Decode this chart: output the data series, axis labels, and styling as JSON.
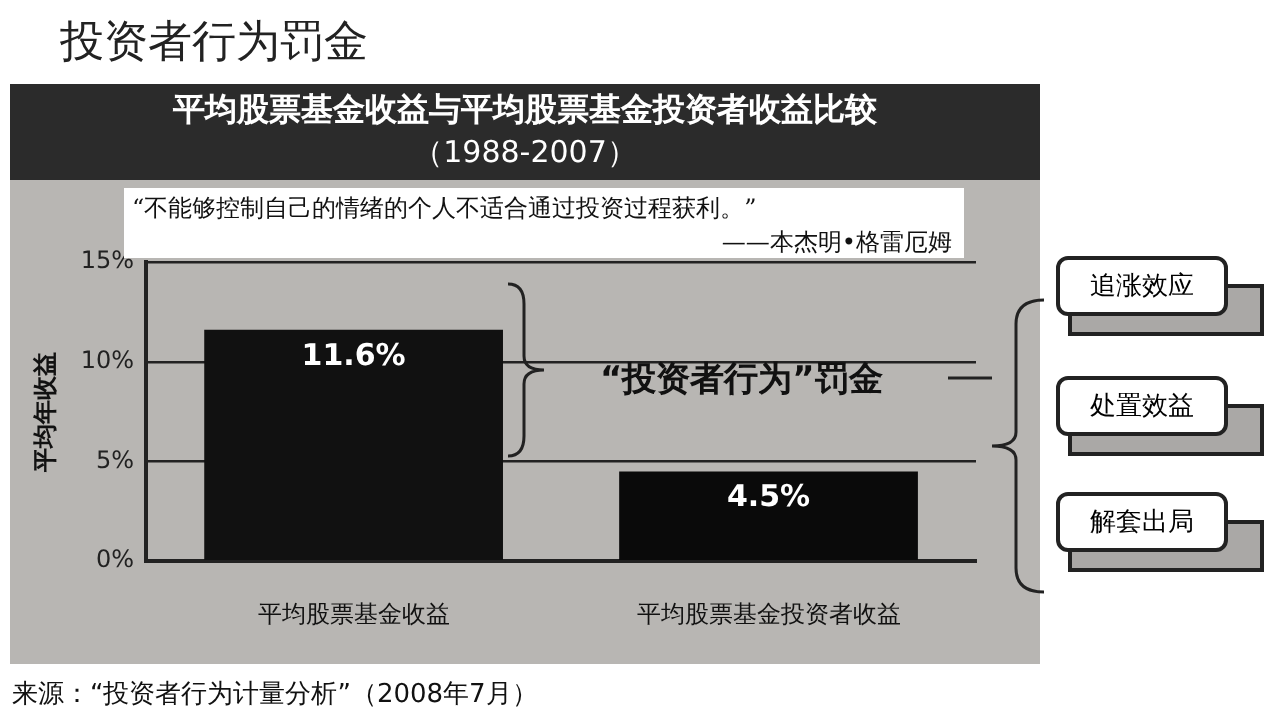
{
  "chart_data": {
    "type": "bar",
    "title": "平均股票基金收益与平均股票基金投资者收益比较",
    "subtitle": "（1988-2007）",
    "ylabel": "平均年收益",
    "categories": [
      "平均股票基金收益",
      "平均股票基金投资者收益"
    ],
    "values": [
      11.6,
      4.5
    ],
    "colors": [
      "#111111",
      "#0a0a0a"
    ],
    "value_labels": [
      "11.6%",
      "4.5%"
    ],
    "ylim": [
      0,
      15
    ],
    "yticks": [
      {
        "value": 0,
        "label": "0%"
      },
      {
        "value": 5,
        "label": "5%"
      },
      {
        "value": 10,
        "label": "10%"
      },
      {
        "value": 15,
        "label": "15%"
      }
    ],
    "grid": "y",
    "annotations": [
      "投资者行为罚金",
      "“不能够控制自己的情绪的个人不适合通过投资过程获利。”",
      "——本杰明•格雷厄姆",
      "“投资者行为”罚金",
      "追涨效应",
      "处置效益",
      "解套出局",
      "来源：“投资者行为计量分析”（2008年7月）"
    ]
  }
}
